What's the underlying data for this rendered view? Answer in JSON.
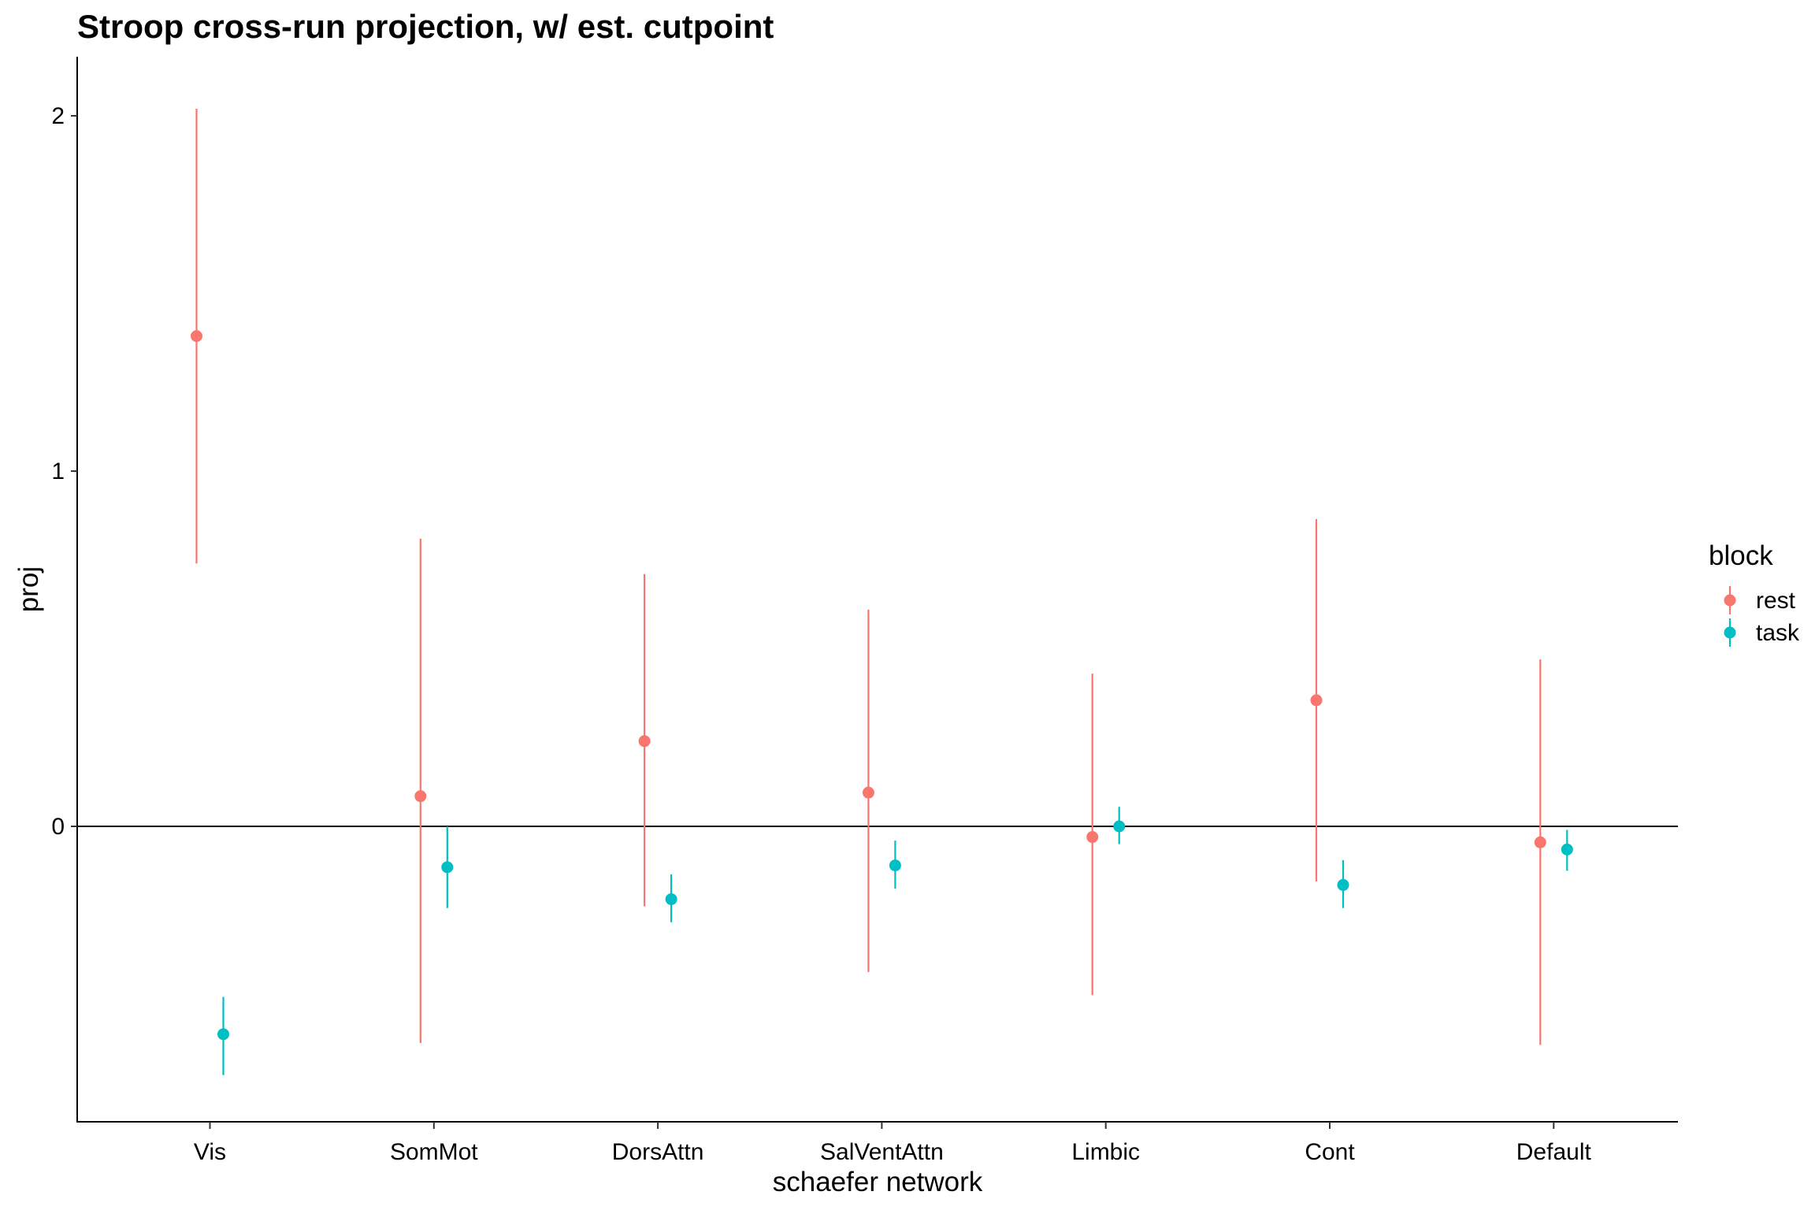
{
  "chart_data": {
    "type": "scatter",
    "title": "Stroop cross-run projection, w/ est. cutpoint",
    "xlabel": "schaefer network",
    "ylabel": "proj",
    "categories": [
      "Vis",
      "SomMot",
      "DorsAttn",
      "SalVentAttn",
      "Limbic",
      "Cont",
      "Default"
    ],
    "y_ticks": [
      0,
      1,
      2
    ],
    "ylim": [
      -0.83,
      2.16
    ],
    "reference_line": 0,
    "grid": false,
    "legend": {
      "title": "block",
      "position": "right"
    },
    "series": [
      {
        "name": "rest",
        "color": "#F8766D",
        "values": [
          1.38,
          0.085,
          0.24,
          0.095,
          -0.03,
          0.355,
          -0.045
        ],
        "lower": [
          0.74,
          -0.61,
          -0.225,
          -0.41,
          -0.475,
          -0.155,
          -0.615
        ],
        "upper": [
          2.02,
          0.81,
          0.71,
          0.61,
          0.43,
          0.865,
          0.47
        ]
      },
      {
        "name": "task",
        "color": "#00BFC4",
        "values": [
          -0.585,
          -0.115,
          -0.205,
          -0.11,
          0.0,
          -0.165,
          -0.065
        ],
        "lower": [
          -0.7,
          -0.23,
          -0.27,
          -0.175,
          -0.05,
          -0.23,
          -0.125
        ],
        "upper": [
          -0.48,
          0.0,
          -0.135,
          -0.04,
          0.055,
          -0.095,
          -0.01
        ]
      }
    ]
  }
}
